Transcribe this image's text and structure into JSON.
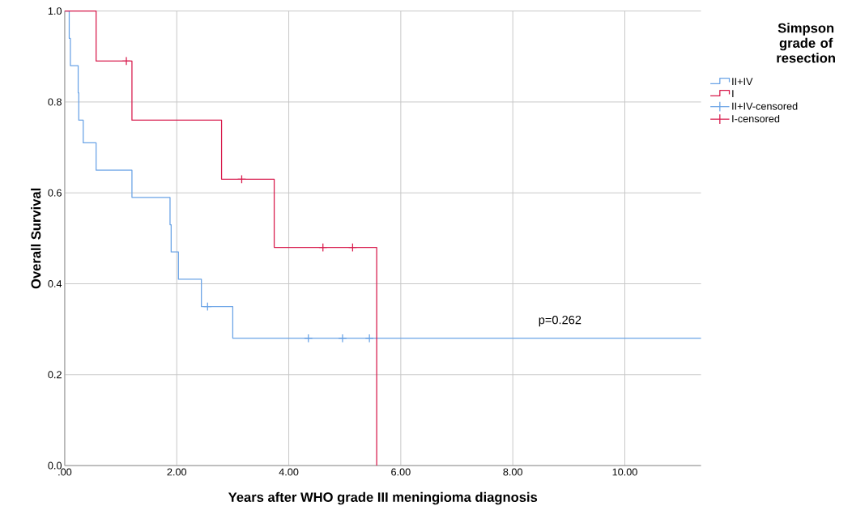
{
  "chart_data": {
    "type": "step",
    "xlabel": "Years after WHO grade III meningioma diagnosis",
    "ylabel": "Overall Survival",
    "legend_title": "Simpson grade of resection",
    "xlim": [
      0,
      11.36
    ],
    "ylim": [
      0,
      1
    ],
    "xticks": [
      {
        "value": 0,
        "label": ".00"
      },
      {
        "value": 2,
        "label": "2.00"
      },
      {
        "value": 4,
        "label": "4.00"
      },
      {
        "value": 6,
        "label": "6.00"
      },
      {
        "value": 8,
        "label": "8.00"
      },
      {
        "value": 10,
        "label": "10.00"
      }
    ],
    "yticks": [
      {
        "value": 0,
        "label": "0.0"
      },
      {
        "value": 0.2,
        "label": "0.2"
      },
      {
        "value": 0.4,
        "label": "0.4"
      },
      {
        "value": 0.6,
        "label": "0.6"
      },
      {
        "value": 0.8,
        "label": "0.8"
      },
      {
        "value": 1,
        "label": "1.0"
      }
    ],
    "grid": true,
    "legend": "right",
    "annotations": [
      "p=0.262"
    ],
    "series": [
      {
        "name": "II+IV",
        "color": "#6aa3e6",
        "x": [
          0,
          0.08,
          0.1,
          0.24,
          0.25,
          0.33,
          0.56,
          1.2,
          1.88,
          1.9,
          2.03,
          2.44,
          3.0,
          11.36
        ],
        "values": [
          1,
          0.94,
          0.88,
          0.82,
          0.76,
          0.71,
          0.65,
          0.59,
          0.53,
          0.47,
          0.41,
          0.35,
          0.28,
          0.28
        ]
      },
      {
        "name": "I",
        "color": "#d81b4c",
        "x": [
          0,
          0.56,
          1.2,
          2.8,
          3.74,
          5.57
        ],
        "values": [
          1,
          0.89,
          0.76,
          0.63,
          0.48,
          0
        ]
      },
      {
        "name": "II+IV-censored",
        "type": "scatter",
        "marker": "cross",
        "color": "#6aa3e6",
        "x": [
          2.55,
          4.35,
          4.96,
          5.44
        ],
        "values": [
          0.35,
          0.28,
          0.28,
          0.28
        ]
      },
      {
        "name": "I-censored",
        "type": "scatter",
        "marker": "cross",
        "color": "#d81b4c",
        "x": [
          1.1,
          3.16,
          4.61,
          5.14
        ],
        "values": [
          0.89,
          0.63,
          0.48,
          0.48
        ]
      }
    ]
  }
}
